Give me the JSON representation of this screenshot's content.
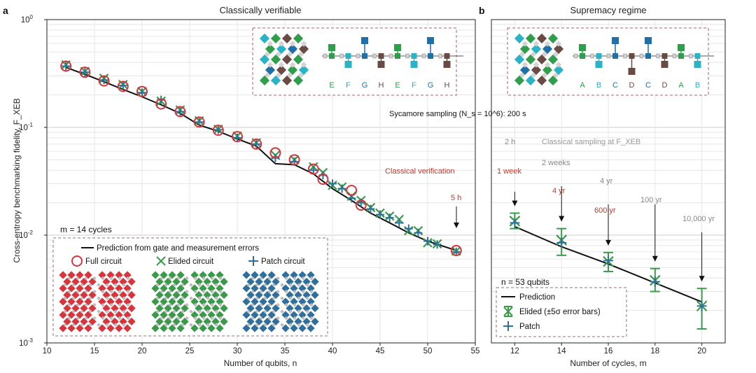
{
  "colors": {
    "full": "#d9343b",
    "elided": "#3a9a4a",
    "patch": "#2f6f9e",
    "prediction": "#111111",
    "grid": "#d6d6d6",
    "red_text": "#c0392b",
    "gray_text": "#888888",
    "inset_border": "#b05a7a",
    "q_blue": "#1f6fa8",
    "q_teal": "#2ab3c6",
    "q_green": "#2e9e4a",
    "q_brown": "#6b4a44",
    "q_gray": "#cfcfcf"
  },
  "panel_a": {
    "letter": "a",
    "title": "Classically verifiable",
    "xlabel": "Number of qubits, n",
    "ylabel": "Cross-entropy benchmarking fidelity, F_XEB",
    "cycles_label": "m = 14 cycles",
    "legend": {
      "prediction": "Prediction from gate and measurement errors",
      "full": "Full circuit",
      "elided": "Elided circuit",
      "patch": "Patch circuit"
    },
    "classical_verification": "Classical verification",
    "time_5h": "5 h",
    "inset_letters": [
      "E",
      "F",
      "G",
      "H",
      "E",
      "F",
      "G",
      "H"
    ]
  },
  "panel_b": {
    "letter": "b",
    "title": "Supremacy regime",
    "xlabel": "Number of cycles, m",
    "qubits_label": "n = 53 qubits",
    "sycamore": "Sycamore sampling (N_s = 10^6): 200 s",
    "classical_sampling": "Classical sampling at F_XEB",
    "annotations_gray": [
      "2 h",
      "2 weeks",
      "4 yr",
      "100 yr",
      "10,000 yr"
    ],
    "annotations_red": [
      "1 week",
      "4 yr",
      "600 yr"
    ],
    "legend": {
      "prediction": "Prediction",
      "elided": "Elided (±5σ error bars)",
      "patch": "Patch"
    },
    "inset_letters": [
      "A",
      "B",
      "C",
      "D",
      "C",
      "D",
      "A",
      "B"
    ]
  },
  "chart_data": [
    {
      "type": "scatter",
      "title": "Classically verifiable",
      "xlabel": "Number of qubits, n",
      "ylabel": "Cross-entropy benchmarking fidelity, F_XEB",
      "xlim": [
        10,
        55
      ],
      "ylim": [
        0.001,
        1
      ],
      "yscale": "log",
      "x_ticks": [
        10,
        15,
        20,
        25,
        30,
        35,
        40,
        45,
        50,
        55
      ],
      "y_ticks": [
        "10^-3",
        "10^-2",
        "10^-1",
        "10^0"
      ],
      "grid": true,
      "series": [
        {
          "name": "Prediction from gate and measurement errors",
          "x": [
            12,
            14,
            16,
            18,
            20,
            22,
            24,
            26,
            28,
            30,
            32,
            34,
            36,
            38,
            40,
            42,
            44,
            46,
            48,
            50,
            53
          ],
          "y": [
            0.36,
            0.31,
            0.265,
            0.225,
            0.192,
            0.162,
            0.135,
            0.105,
            0.092,
            0.078,
            0.067,
            0.046,
            0.045,
            0.037,
            0.027,
            0.021,
            0.016,
            0.013,
            0.0105,
            0.0088,
            0.0072
          ]
        },
        {
          "name": "Full circuit",
          "x": [
            12,
            14,
            16,
            18,
            20,
            22,
            24,
            26,
            28,
            30,
            32,
            34,
            36,
            38,
            39,
            42,
            43,
            53
          ],
          "y": [
            0.37,
            0.325,
            0.27,
            0.24,
            0.215,
            0.165,
            0.14,
            0.112,
            0.094,
            0.082,
            0.07,
            0.058,
            0.05,
            0.041,
            0.033,
            0.026,
            0.019,
            0.0072
          ]
        },
        {
          "name": "Elided circuit",
          "x": [
            12,
            14,
            16,
            18,
            20,
            22,
            24,
            26,
            28,
            30,
            32,
            34,
            36,
            38,
            39,
            40,
            41,
            42,
            43,
            44,
            45,
            46,
            47,
            48,
            49,
            50,
            51,
            53
          ],
          "y": [
            0.38,
            0.33,
            0.285,
            0.25,
            0.215,
            0.175,
            0.145,
            0.115,
            0.096,
            0.083,
            0.072,
            0.055,
            0.05,
            0.043,
            0.038,
            0.029,
            0.028,
            0.023,
            0.021,
            0.018,
            0.016,
            0.015,
            0.014,
            0.011,
            0.011,
            0.0085,
            0.0083,
            0.0071
          ]
        },
        {
          "name": "Patch circuit",
          "x": [
            12,
            14,
            16,
            18,
            20,
            22,
            24,
            26,
            28,
            30,
            32,
            34,
            36,
            38,
            39,
            40,
            41,
            42,
            43,
            44,
            45,
            46,
            47,
            48,
            49,
            50,
            51,
            53
          ],
          "y": [
            0.37,
            0.325,
            0.275,
            0.245,
            0.21,
            0.18,
            0.14,
            0.112,
            0.095,
            0.08,
            0.07,
            0.052,
            0.048,
            0.04,
            0.036,
            0.03,
            0.027,
            0.022,
            0.02,
            0.0175,
            0.0155,
            0.0145,
            0.013,
            0.0115,
            0.0105,
            0.0088,
            0.0082,
            0.007
          ]
        }
      ]
    },
    {
      "type": "scatter",
      "title": "Supremacy regime",
      "xlabel": "Number of cycles, m",
      "xlim": [
        11,
        21
      ],
      "ylim": [
        0.001,
        1
      ],
      "yscale": "log",
      "x_ticks": [
        12,
        14,
        16,
        18,
        20
      ],
      "grid": true,
      "series": [
        {
          "name": "Prediction",
          "x": [
            12,
            14,
            16,
            18,
            20
          ],
          "y": [
            0.012,
            0.0078,
            0.0054,
            0.0036,
            0.0024
          ]
        },
        {
          "name": "Elided (±5σ error bars)",
          "x": [
            12,
            14,
            16,
            18,
            20
          ],
          "y": [
            0.0135,
            0.009,
            0.0057,
            0.0038,
            0.0022
          ],
          "ylow": [
            0.0115,
            0.0065,
            0.0046,
            0.003,
            0.00135
          ],
          "yhigh": [
            0.016,
            0.0115,
            0.0069,
            0.0049,
            0.0032
          ]
        },
        {
          "name": "Patch",
          "x": [
            12,
            14,
            16,
            18,
            20
          ],
          "y": [
            0.013,
            0.0085,
            0.0058,
            0.0037,
            0.0022
          ]
        }
      ]
    }
  ]
}
